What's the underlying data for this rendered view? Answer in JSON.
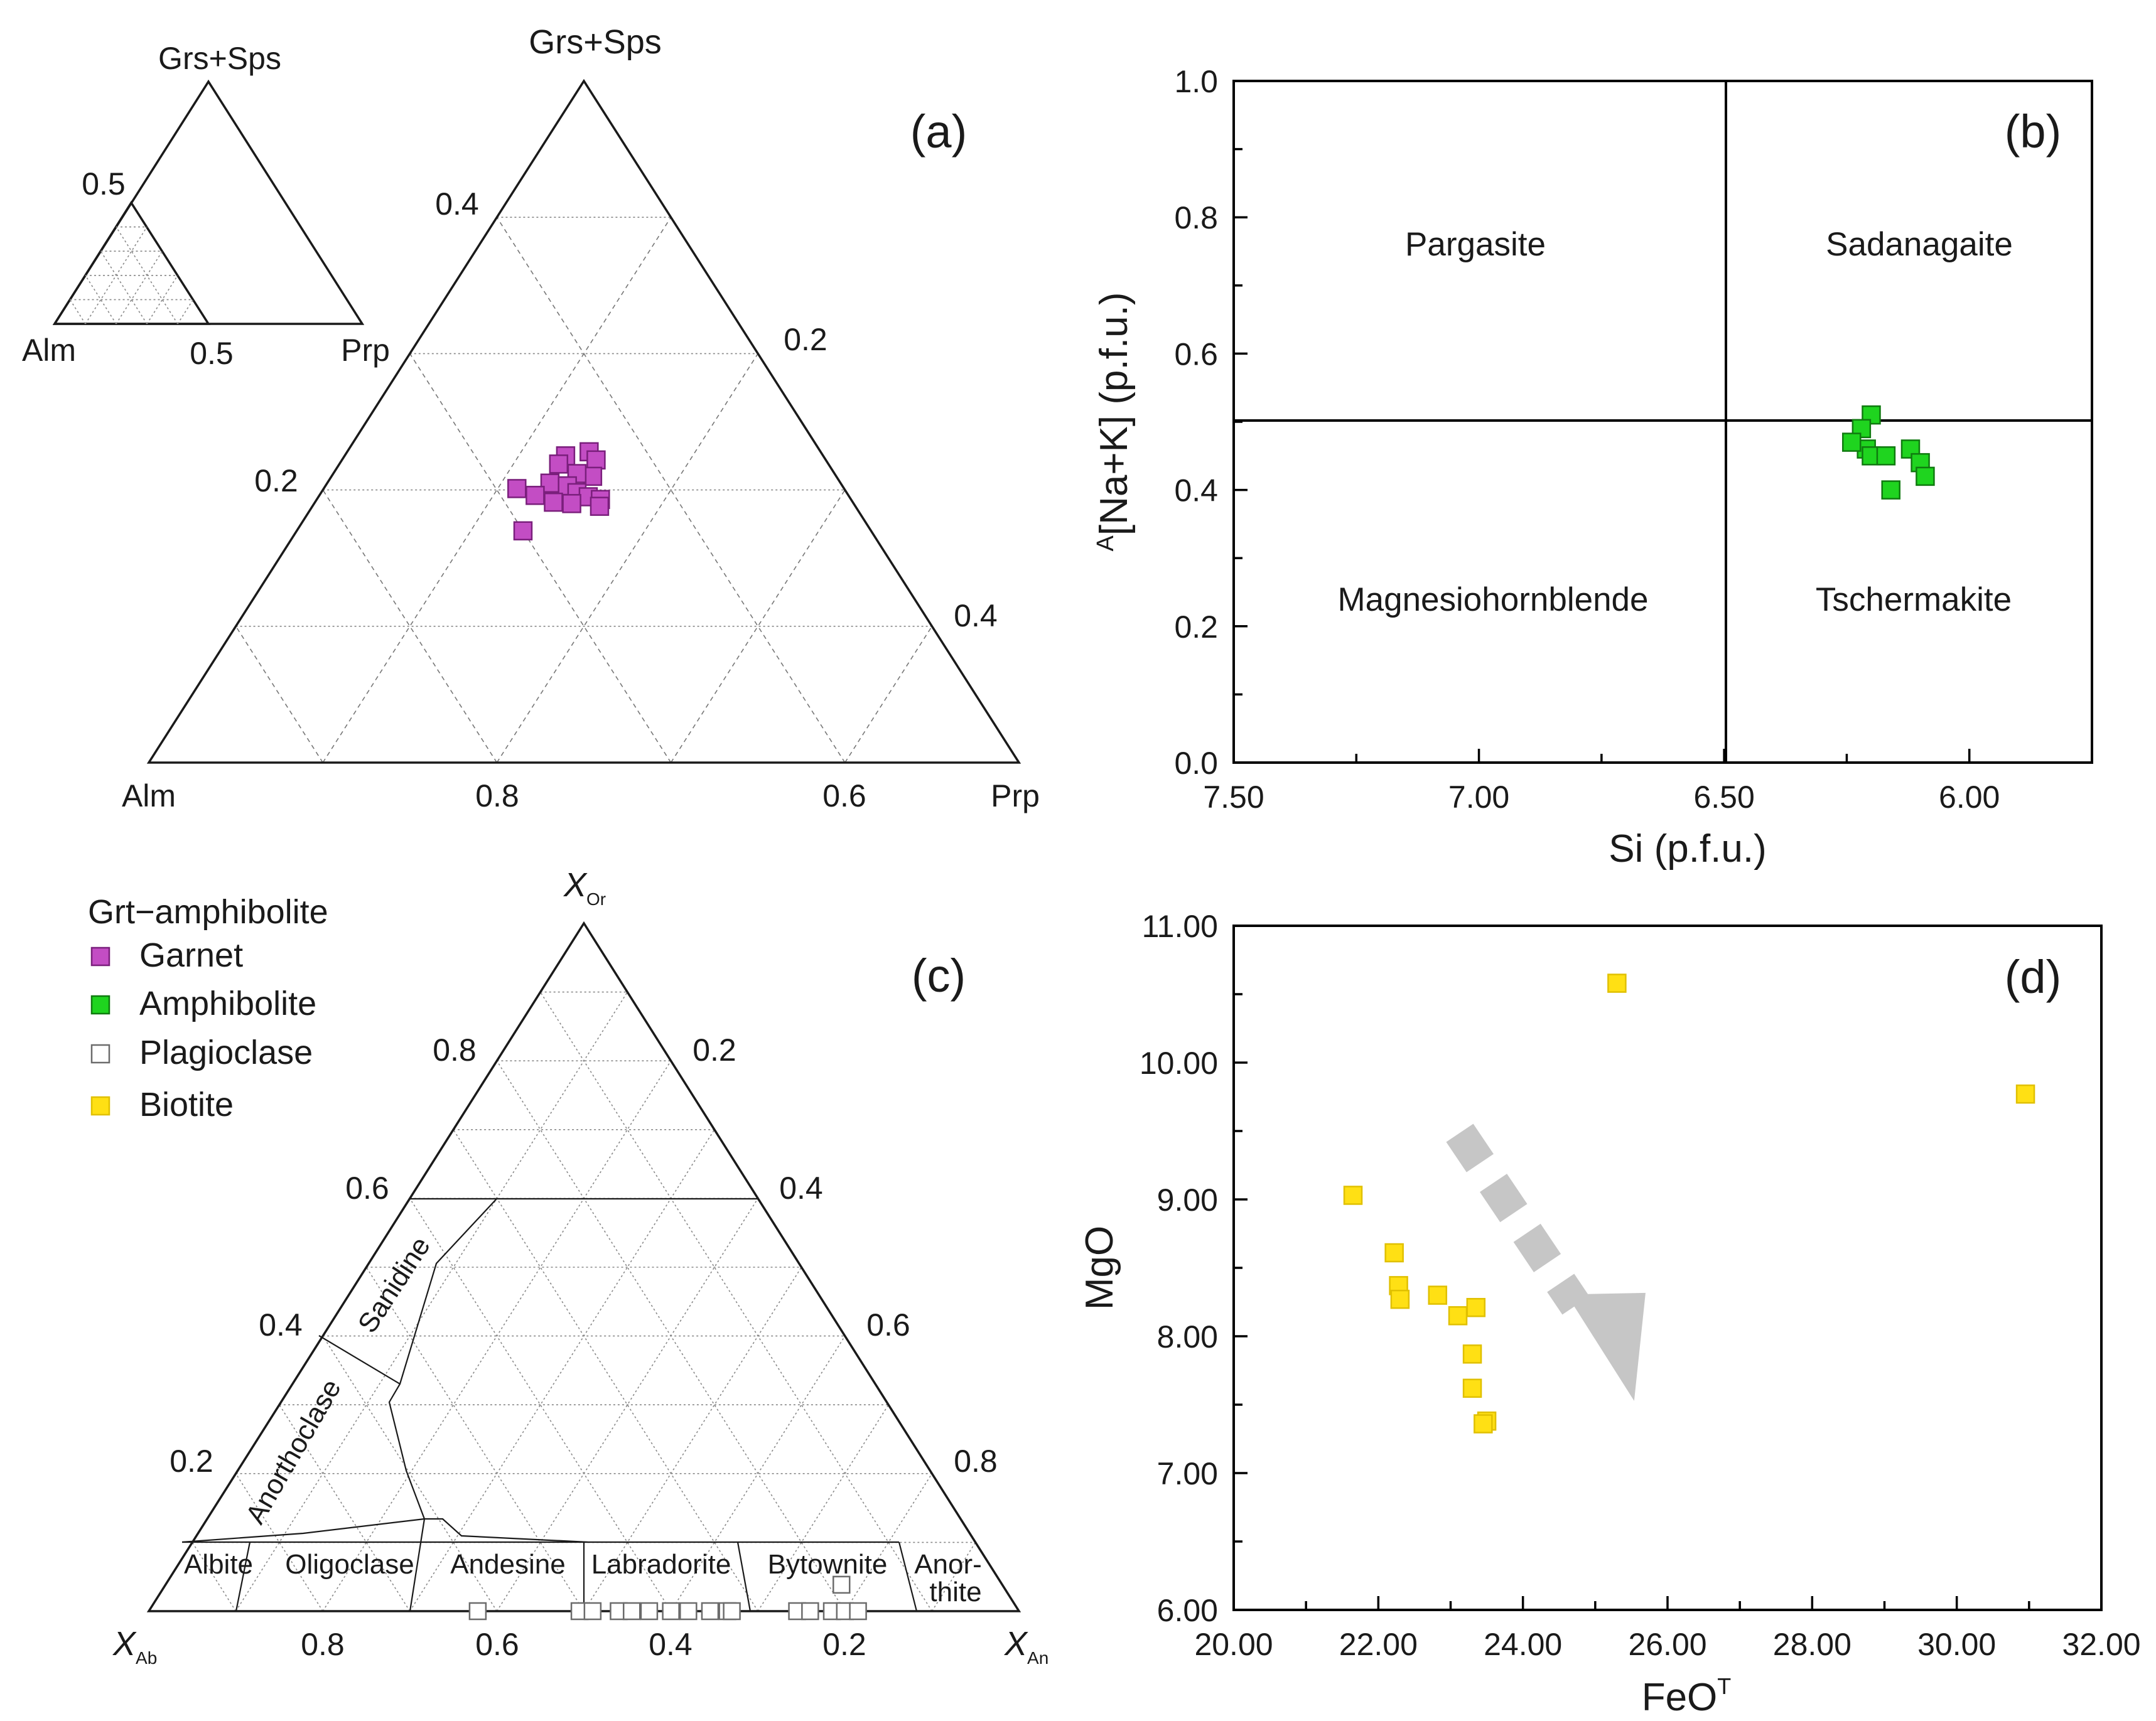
{
  "legend": {
    "title": "Grt−amphibolite",
    "items": [
      {
        "label": "Garnet",
        "color": "#c34dc4",
        "stroke": "#7a1f7c",
        "shape": "square"
      },
      {
        "label": "Amphibolite",
        "color": "#1fd41f",
        "stroke": "#0f7a0f",
        "shape": "square"
      },
      {
        "label": "Plagioclase",
        "color": "#ffffff",
        "stroke": "#6b6b6b",
        "shape": "square"
      },
      {
        "label": "Biotite",
        "color": "#ffe014",
        "stroke": "#e0c000",
        "shape": "square"
      }
    ]
  },
  "chart_data": [
    {
      "panel": "(a)",
      "type": "scatter",
      "subtype": "ternary",
      "apex_labels": {
        "top": "Grs+Sps",
        "left": "Alm",
        "right": "Prp"
      },
      "range": "Grs+Sps 0–0.5, Prp 0–0.5 (zoomed corner of full ternary)",
      "inset": {
        "apex_labels": {
          "top": "Grs+Sps",
          "left": "Alm",
          "right": "Prp"
        },
        "left_label": "0.5",
        "bottom_label": "0.5"
      },
      "left_axis_ticks": [
        "0.4",
        "0.2"
      ],
      "right_axis_ticks": [
        "0.2",
        "0.4"
      ],
      "bottom_axis_ticks": [
        "0.8",
        "0.6"
      ],
      "series": [
        {
          "name": "Garnet",
          "points_grs_prp": [
            [
              0.228,
              0.139
            ],
            [
              0.225,
              0.127
            ],
            [
              0.222,
              0.146
            ],
            [
              0.219,
              0.126
            ],
            [
              0.21,
              0.15
            ],
            [
              0.212,
              0.14
            ],
            [
              0.205,
              0.128
            ],
            [
              0.203,
              0.139
            ],
            [
              0.198,
              0.147
            ],
            [
              0.195,
              0.155
            ],
            [
              0.193,
              0.163
            ],
            [
              0.196,
              0.124
            ],
            [
              0.201,
              0.111
            ],
            [
              0.191,
              0.137
            ],
            [
              0.19,
              0.148
            ],
            [
              0.188,
              0.165
            ],
            [
              0.17,
              0.13
            ]
          ]
        }
      ]
    },
    {
      "panel": "(b)",
      "type": "scatter",
      "xlabel": "Si (p.f.u.)",
      "ylabel_superscript": "A",
      "ylabel": "[Na+K] (p.f.u.)",
      "xlim": [
        7.5,
        5.75
      ],
      "x_reversed": true,
      "ylim": [
        0.0,
        1.0
      ],
      "xticks": [
        "7.50",
        "7.00",
        "6.50",
        "6.00"
      ],
      "yticks": [
        "0.0",
        "0.2",
        "0.4",
        "0.6",
        "0.8",
        "1.0"
      ],
      "dividers": {
        "x": 6.5,
        "y": 0.5
      },
      "fields": [
        "Pargasite",
        "Sadanagaite",
        "Magnesiohornblende",
        "Tschermakite"
      ],
      "series": [
        {
          "name": "Amphibolite",
          "x": [
            6.2,
            6.22,
            6.21,
            6.24,
            6.2,
            6.17,
            6.12,
            6.1,
            6.09,
            6.16
          ],
          "y": [
            0.51,
            0.49,
            0.46,
            0.47,
            0.45,
            0.45,
            0.46,
            0.44,
            0.42,
            0.4
          ]
        }
      ]
    },
    {
      "panel": "(c)",
      "type": "scatter",
      "subtype": "ternary",
      "apex_labels": {
        "top": "X",
        "top_sub": "Or",
        "left": "X",
        "left_sub": "Ab",
        "right": "X",
        "right_sub": "An"
      },
      "left_axis_ticks": [
        "0.8",
        "0.6",
        "0.4",
        "0.2"
      ],
      "right_axis_ticks": [
        "0.2",
        "0.4",
        "0.6",
        "0.8"
      ],
      "bottom_axis_ticks": [
        "0.8",
        "0.6",
        "0.4",
        "0.2"
      ],
      "fields": [
        "Sanidine",
        "Anorthoclase",
        "Albite",
        "Oligoclase",
        "Andesine",
        "Labradorite",
        "Bytownite",
        "Anor-",
        "thite"
      ],
      "series": [
        {
          "name": "Plagioclase",
          "points_an_or": [
            [
              0.378,
              0.0
            ],
            [
              0.495,
              0.0
            ],
            [
              0.51,
              0.0
            ],
            [
              0.54,
              0.0
            ],
            [
              0.555,
              0.0
            ],
            [
              0.575,
              0.0
            ],
            [
              0.6,
              0.0
            ],
            [
              0.62,
              0.0
            ],
            [
              0.645,
              0.0
            ],
            [
              0.665,
              0.0
            ],
            [
              0.67,
              0.0
            ],
            [
              0.745,
              0.0
            ],
            [
              0.76,
              0.0
            ],
            [
              0.785,
              0.0
            ],
            [
              0.8,
              0.0
            ],
            [
              0.815,
              0.0
            ],
            [
              0.785,
              0.022
            ]
          ]
        }
      ]
    },
    {
      "panel": "(d)",
      "type": "scatter",
      "xlabel": "FeO",
      "xlabel_superscript": "T",
      "ylabel": "MgO",
      "xlim": [
        20.0,
        32.0
      ],
      "ylim": [
        6.0,
        11.0
      ],
      "xticks": [
        "20.00",
        "22.00",
        "24.00",
        "26.00",
        "28.00",
        "30.00",
        "32.00"
      ],
      "yticks": [
        "6.00",
        "7.00",
        "8.00",
        "9.00",
        "10.00",
        "11.00"
      ],
      "annotation": "grey dashed trend arrow pointing down-right",
      "series": [
        {
          "name": "Biotite",
          "x": [
            21.65,
            22.22,
            22.28,
            22.3,
            22.82,
            23.1,
            23.35,
            23.3,
            23.5,
            23.45,
            23.3,
            25.3,
            30.95
          ],
          "y": [
            9.03,
            8.61,
            8.37,
            8.27,
            8.3,
            8.15,
            8.21,
            7.87,
            7.38,
            7.36,
            7.62,
            10.58,
            9.77
          ]
        }
      ]
    }
  ]
}
